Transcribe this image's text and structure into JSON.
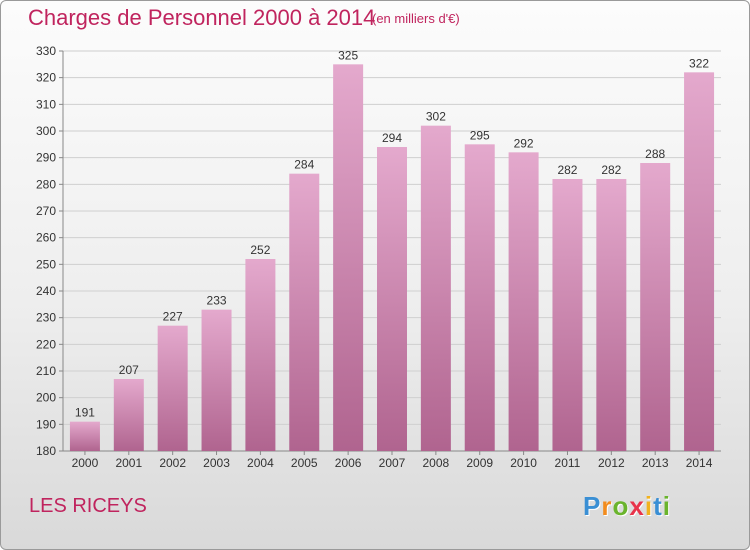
{
  "title": "Charges de Personnel 2000 à 2014",
  "subtitle": "(en milliers d'€)",
  "place": "LES RICEYS",
  "logo": {
    "letters": [
      "P",
      "r",
      "o",
      "x",
      "i",
      "t",
      "i"
    ],
    "colors": [
      "#3a8fd4",
      "#f28c1e",
      "#6ab42d",
      "#e8334a",
      "#f2b21e",
      "#3a8fd4",
      "#6ab42d"
    ]
  },
  "colors": {
    "bar_top": "#e4a9cd",
    "bar_bottom": "#b0648f",
    "grid": "#cfcfcf",
    "axis_text": "#333333",
    "accent": "#c0245e"
  },
  "chart_data": {
    "type": "bar",
    "title": "Charges de Personnel 2000 à 2014",
    "categories": [
      "2000",
      "2001",
      "2002",
      "2003",
      "2004",
      "2005",
      "2006",
      "2007",
      "2008",
      "2009",
      "2010",
      "2011",
      "2012",
      "2013",
      "2014"
    ],
    "values": [
      191,
      207,
      227,
      233,
      252,
      284,
      325,
      294,
      302,
      295,
      292,
      282,
      282,
      288,
      322
    ],
    "ylim": [
      180,
      330
    ],
    "yticks": [
      180,
      190,
      200,
      210,
      220,
      230,
      240,
      250,
      260,
      270,
      280,
      290,
      300,
      310,
      320,
      330
    ],
    "grid": true
  }
}
